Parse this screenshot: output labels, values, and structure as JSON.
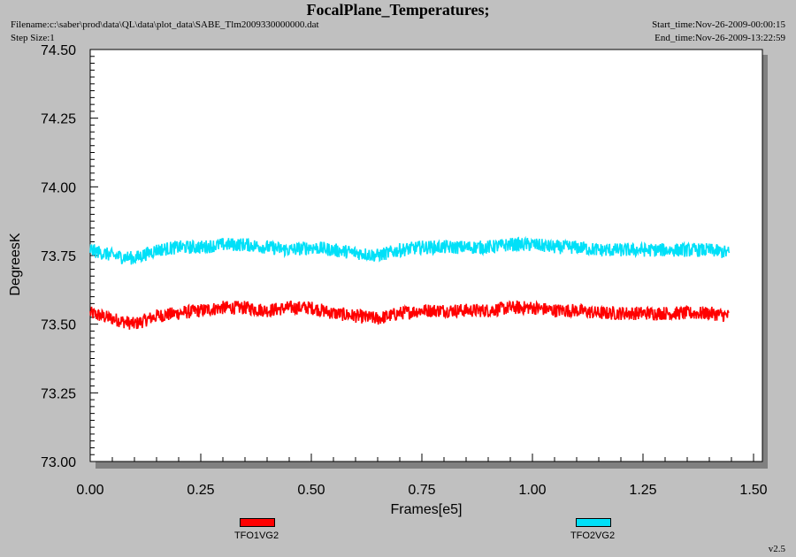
{
  "header": {
    "title": "FocalPlane_Temperatures;",
    "filename": "Filename:c:\\saber\\prod\\data\\QL\\data\\plot_data\\SABE_Tlm2009330000000.dat",
    "step_size": "Step Size:1",
    "start_time": "Start_time:Nov-26-2009-00:00:15",
    "end_time": "End_time:Nov-26-2009-13:22:59"
  },
  "version": "v2.5",
  "colors": {
    "background": "#c0c0c0",
    "plot_bg": "#ffffff",
    "series1": "#ff0000",
    "series2": "#00e0f8"
  },
  "chart_data": {
    "type": "line",
    "title": "FocalPlane_Temperatures;",
    "xlabel": "Frames[e5]",
    "ylabel": "DegreesK",
    "xlim": [
      0.0,
      1.5
    ],
    "ylim": [
      73.0,
      74.5
    ],
    "x_ticks": [
      "0.00",
      "0.25",
      "0.50",
      "0.75",
      "1.00",
      "1.25",
      "1.50"
    ],
    "y_ticks": [
      "73.00",
      "73.25",
      "73.50",
      "73.75",
      "74.00",
      "74.25",
      "74.50"
    ],
    "grid": false,
    "legend": "bottom",
    "x": [
      0.0,
      0.05,
      0.1,
      0.15,
      0.2,
      0.25,
      0.3,
      0.35,
      0.4,
      0.45,
      0.5,
      0.55,
      0.6,
      0.65,
      0.7,
      0.75,
      0.8,
      0.85,
      0.9,
      0.95,
      1.0,
      1.05,
      1.1,
      1.15,
      1.2,
      1.25,
      1.3,
      1.35,
      1.4,
      1.445
    ],
    "series": [
      {
        "name": "TFO1VG2",
        "color": "#ff0000",
        "values": [
          73.54,
          73.52,
          73.5,
          73.53,
          73.54,
          73.55,
          73.56,
          73.56,
          73.55,
          73.56,
          73.56,
          73.54,
          73.53,
          73.52,
          73.54,
          73.55,
          73.55,
          73.55,
          73.55,
          73.56,
          73.56,
          73.55,
          73.55,
          73.54,
          73.54,
          73.54,
          73.54,
          73.54,
          73.54,
          73.53
        ]
      },
      {
        "name": "TFO2VG2",
        "color": "#00e0f8",
        "values": [
          73.77,
          73.75,
          73.74,
          73.77,
          73.78,
          73.78,
          73.79,
          73.79,
          73.78,
          73.77,
          73.78,
          73.77,
          73.76,
          73.75,
          73.77,
          73.78,
          73.78,
          73.78,
          73.78,
          73.79,
          73.79,
          73.78,
          73.78,
          73.77,
          73.77,
          73.77,
          73.77,
          73.77,
          73.77,
          73.76
        ]
      }
    ]
  }
}
